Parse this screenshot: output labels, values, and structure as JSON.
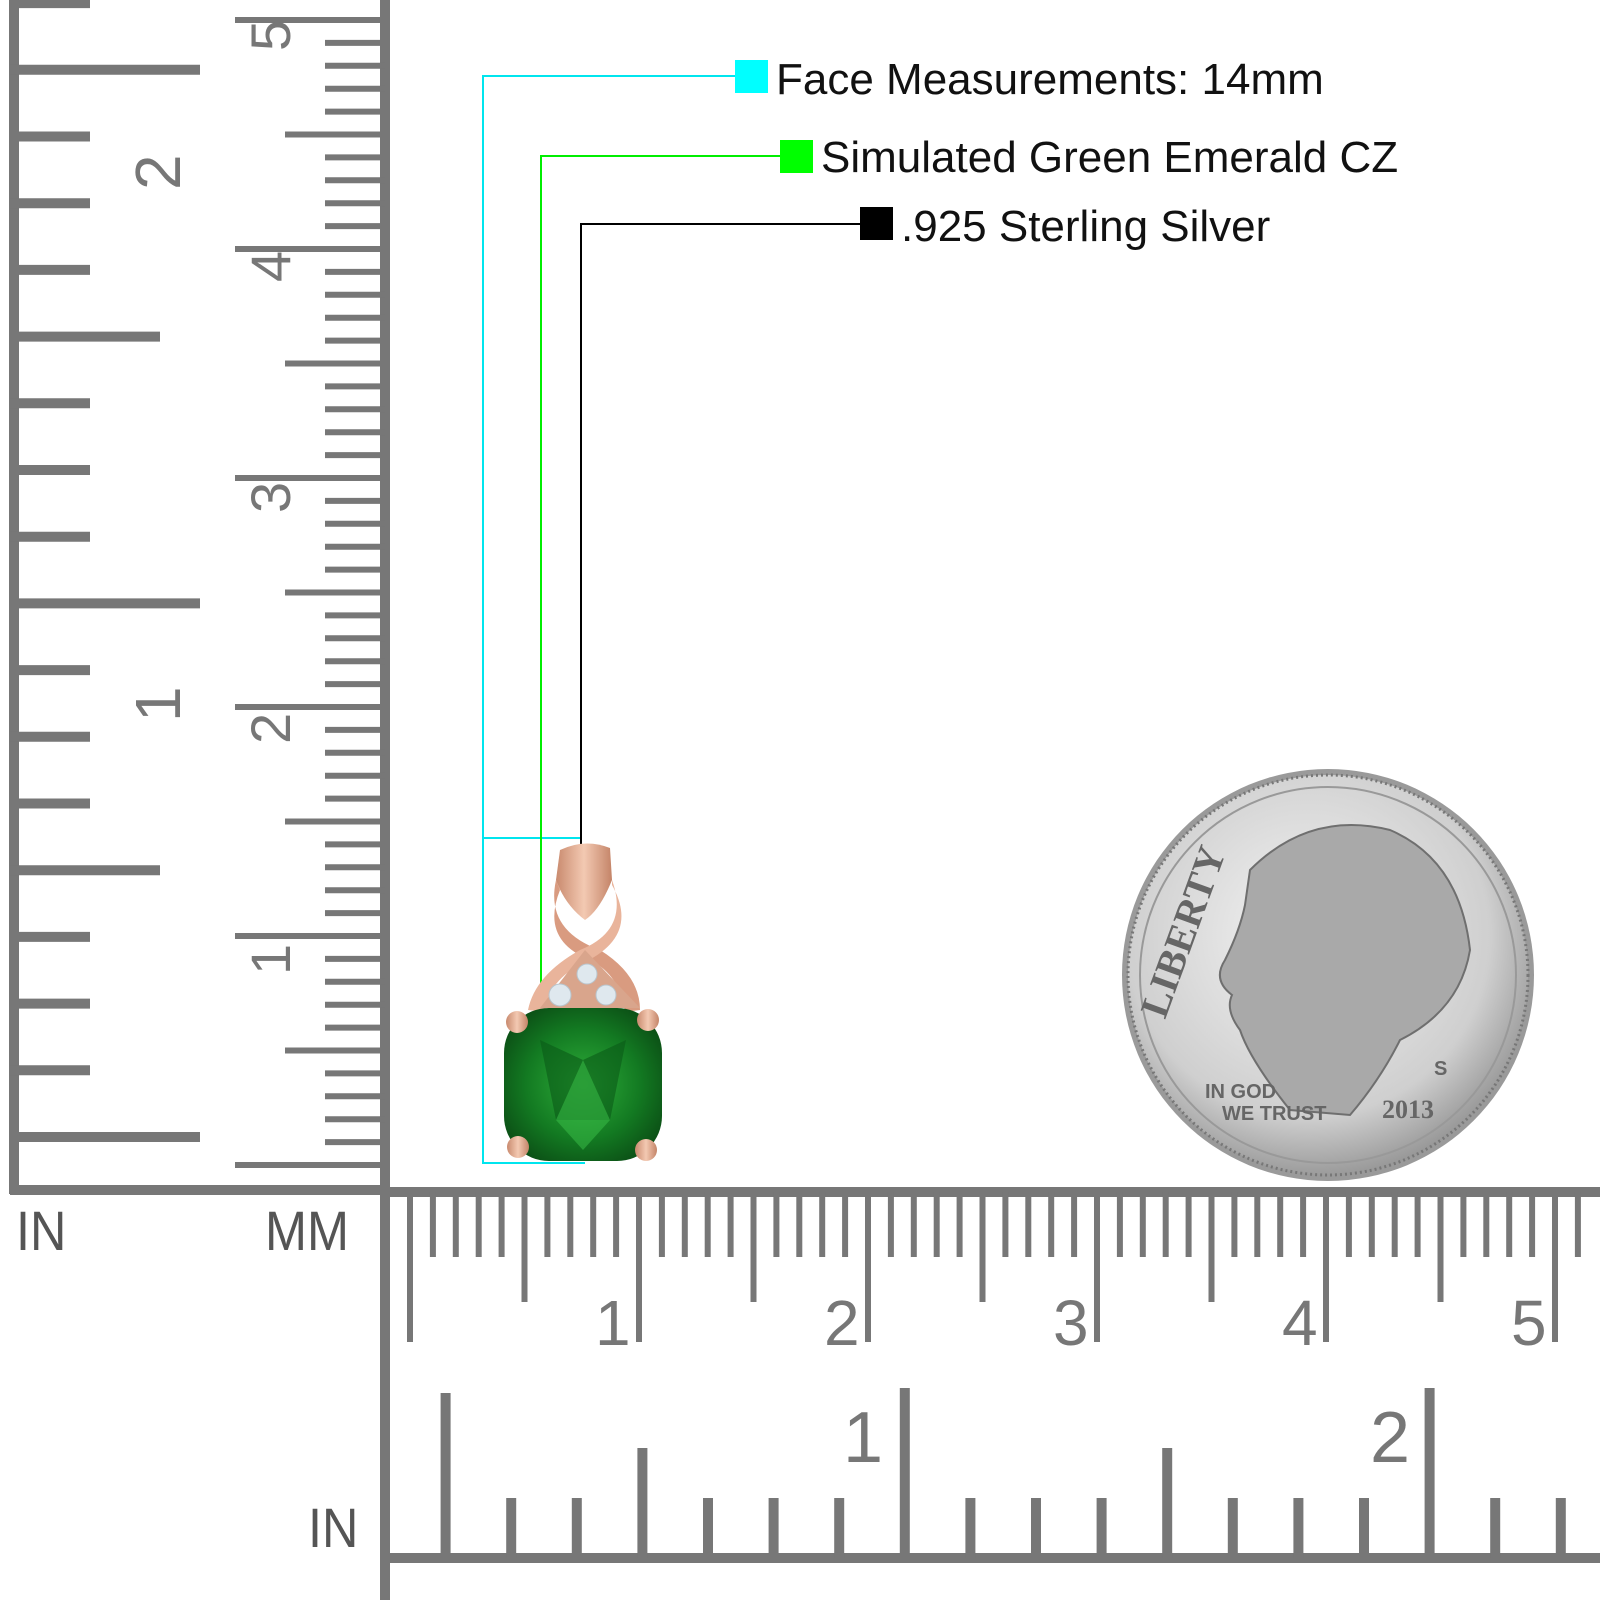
{
  "callouts": [
    {
      "label": "Face Measurements: 14mm",
      "color": "#00ffff"
    },
    {
      "label": "Simulated Green Emerald CZ",
      "color": "#00ff00"
    },
    {
      "label": ".925 Sterling Silver",
      "color": "#000000"
    }
  ],
  "ruler": {
    "color": "#777777",
    "left_in_label": "IN",
    "left_mm_label": "MM",
    "bottom_in_label": "IN",
    "vertical_mm_numbers": [
      "1",
      "2",
      "3",
      "4",
      "5"
    ],
    "vertical_in_numbers": [
      "1",
      "2"
    ],
    "horizontal_mm_numbers": [
      "1",
      "2",
      "3",
      "4",
      "5"
    ],
    "horizontal_in_numbers": [
      "1",
      "2"
    ]
  },
  "product": {
    "metal_color": "#e8b49a",
    "stone_color": "#1a8a2a"
  },
  "dime": {
    "legend": "LIBERTY",
    "motto_1": "IN GOD",
    "motto_2": "WE TRUST",
    "year": "2013",
    "mint_mark": "S"
  }
}
